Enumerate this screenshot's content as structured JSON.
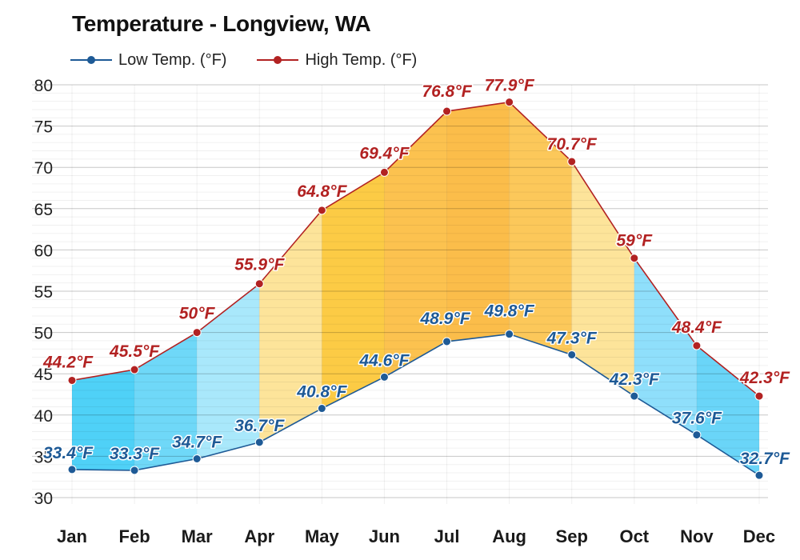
{
  "title": "Temperature - Longview, WA",
  "chart_data": {
    "type": "line",
    "title": "Temperature - Longview, WA",
    "categories": [
      "Jan",
      "Feb",
      "Mar",
      "Apr",
      "May",
      "Jun",
      "Jul",
      "Aug",
      "Sep",
      "Oct",
      "Nov",
      "Dec"
    ],
    "series": [
      {
        "name": "Low Temp. (°F)",
        "color": "#1e5a96",
        "values": [
          33.4,
          33.3,
          34.7,
          36.7,
          40.8,
          44.6,
          48.9,
          49.8,
          47.3,
          42.3,
          37.6,
          32.7
        ],
        "labels": [
          "33.4°F",
          "33.3°F",
          "34.7°F",
          "36.7°F",
          "40.8°F",
          "44.6°F",
          "48.9°F",
          "49.8°F",
          "47.3°F",
          "42.3°F",
          "37.6°F",
          "32.7°F"
        ]
      },
      {
        "name": "High Temp. (°F)",
        "color": "#b22222",
        "values": [
          44.2,
          45.5,
          50,
          55.9,
          64.8,
          69.4,
          76.8,
          77.9,
          70.7,
          59,
          48.4,
          42.3
        ],
        "labels": [
          "44.2°F",
          "45.5°F",
          "50°F",
          "55.9°F",
          "64.8°F",
          "69.4°F",
          "76.8°F",
          "77.9°F",
          "70.7°F",
          "59°F",
          "48.4°F",
          "42.3°F"
        ]
      }
    ],
    "ylim": [
      30,
      80
    ],
    "yticks": [
      30,
      35,
      40,
      45,
      50,
      55,
      60,
      65,
      70,
      75,
      80
    ],
    "grid": true,
    "legend_position": "top-left",
    "band_colors": [
      "#4fd1f7",
      "#6fd8f8",
      "#a9e8fb",
      "#fde49a",
      "#fccb45",
      "#fcc24f",
      "#fbbd4a",
      "#fcc85a",
      "#fde49a",
      "#8fdffb",
      "#6ad5f8",
      "#45cff7"
    ]
  }
}
